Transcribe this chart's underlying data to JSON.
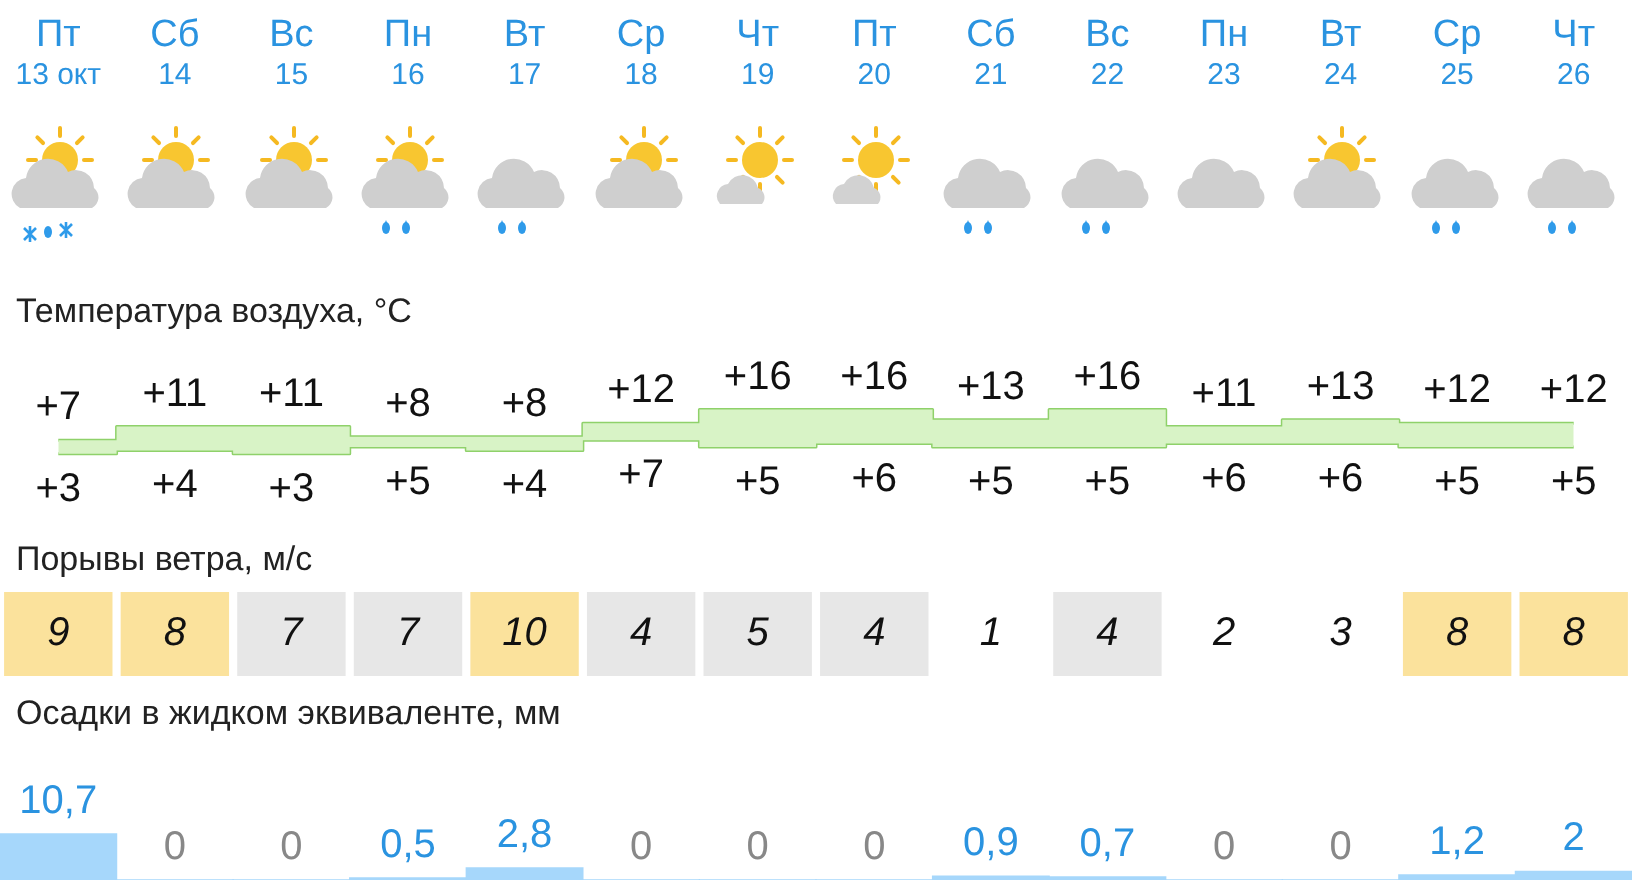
{
  "chart_data": [
    {
      "type": "step",
      "title": "Температура воздуха, °C",
      "categories": [
        "Пт 13 окт",
        "Сб 14",
        "Вс 15",
        "Пн 16",
        "Вт 17",
        "Ср 18",
        "Чт 19",
        "Пт 20",
        "Сб 21",
        "Вс 22",
        "Пн 23",
        "Вт 24",
        "Ср 25",
        "Чт 26"
      ],
      "tick_labels": "x",
      "series": [
        {
          "color": "#8fd16a",
          "values": [
            7,
            11,
            11,
            8,
            8,
            12,
            16,
            16,
            13,
            16,
            11,
            13,
            12,
            12
          ],
          "value_labels": [
            "+7",
            "+11",
            "+11",
            "+8",
            "+8",
            "+12",
            "+16",
            "+16",
            "+13",
            "+16",
            "+11",
            "+13",
            "+12",
            "+12"
          ],
          "upper": [
            7,
            11,
            11,
            8,
            8,
            12,
            16,
            16,
            13,
            16,
            11,
            13,
            12,
            12
          ],
          "lower": [
            3,
            4,
            3,
            5,
            4,
            7,
            5,
            6,
            5,
            5,
            6,
            6,
            5,
            5
          ]
        },
        {
          "color": "#8fd16a",
          "values": [
            3,
            4,
            3,
            5,
            4,
            7,
            5,
            6,
            5,
            5,
            6,
            6,
            5,
            5
          ],
          "value_labels": [
            "+3",
            "+4",
            "+3",
            "+5",
            "+4",
            "+7",
            "+5",
            "+6",
            "+5",
            "+5",
            "+6",
            "+6",
            "+5",
            "+5"
          ]
        }
      ]
    },
    {
      "type": "heatmap",
      "title": "Порывы ветра, м/с",
      "categories": [
        null,
        null,
        null,
        null,
        null,
        null,
        null,
        null,
        null,
        null,
        null,
        null,
        null,
        null
      ],
      "y_categories": [
        null
      ],
      "tick_labels": false,
      "data_labels": true,
      "cells": [
        [
          9,
          8,
          7,
          7,
          10,
          4,
          5,
          4,
          1,
          4,
          2,
          3,
          8,
          8
        ]
      ]
    },
    {
      "type": "bar",
      "title": "Осадки в жидком эквиваленте, мм",
      "categories": [
        null,
        null,
        null,
        null,
        null,
        null,
        null,
        null,
        null,
        null,
        null,
        null,
        null,
        null
      ],
      "tick_labels": false,
      "color": "#a6d7fb",
      "values": [
        10.7,
        0,
        0,
        0.5,
        2.8,
        0,
        0,
        0,
        0.9,
        0.7,
        0,
        0,
        1.2,
        2
      ],
      "value_labels": [
        "10,7",
        "0",
        "0",
        "0,5",
        "2,8",
        "0",
        "0",
        "0",
        "0,9",
        "0,7",
        "0",
        "0",
        "1,2",
        "2"
      ]
    }
  ]
}
